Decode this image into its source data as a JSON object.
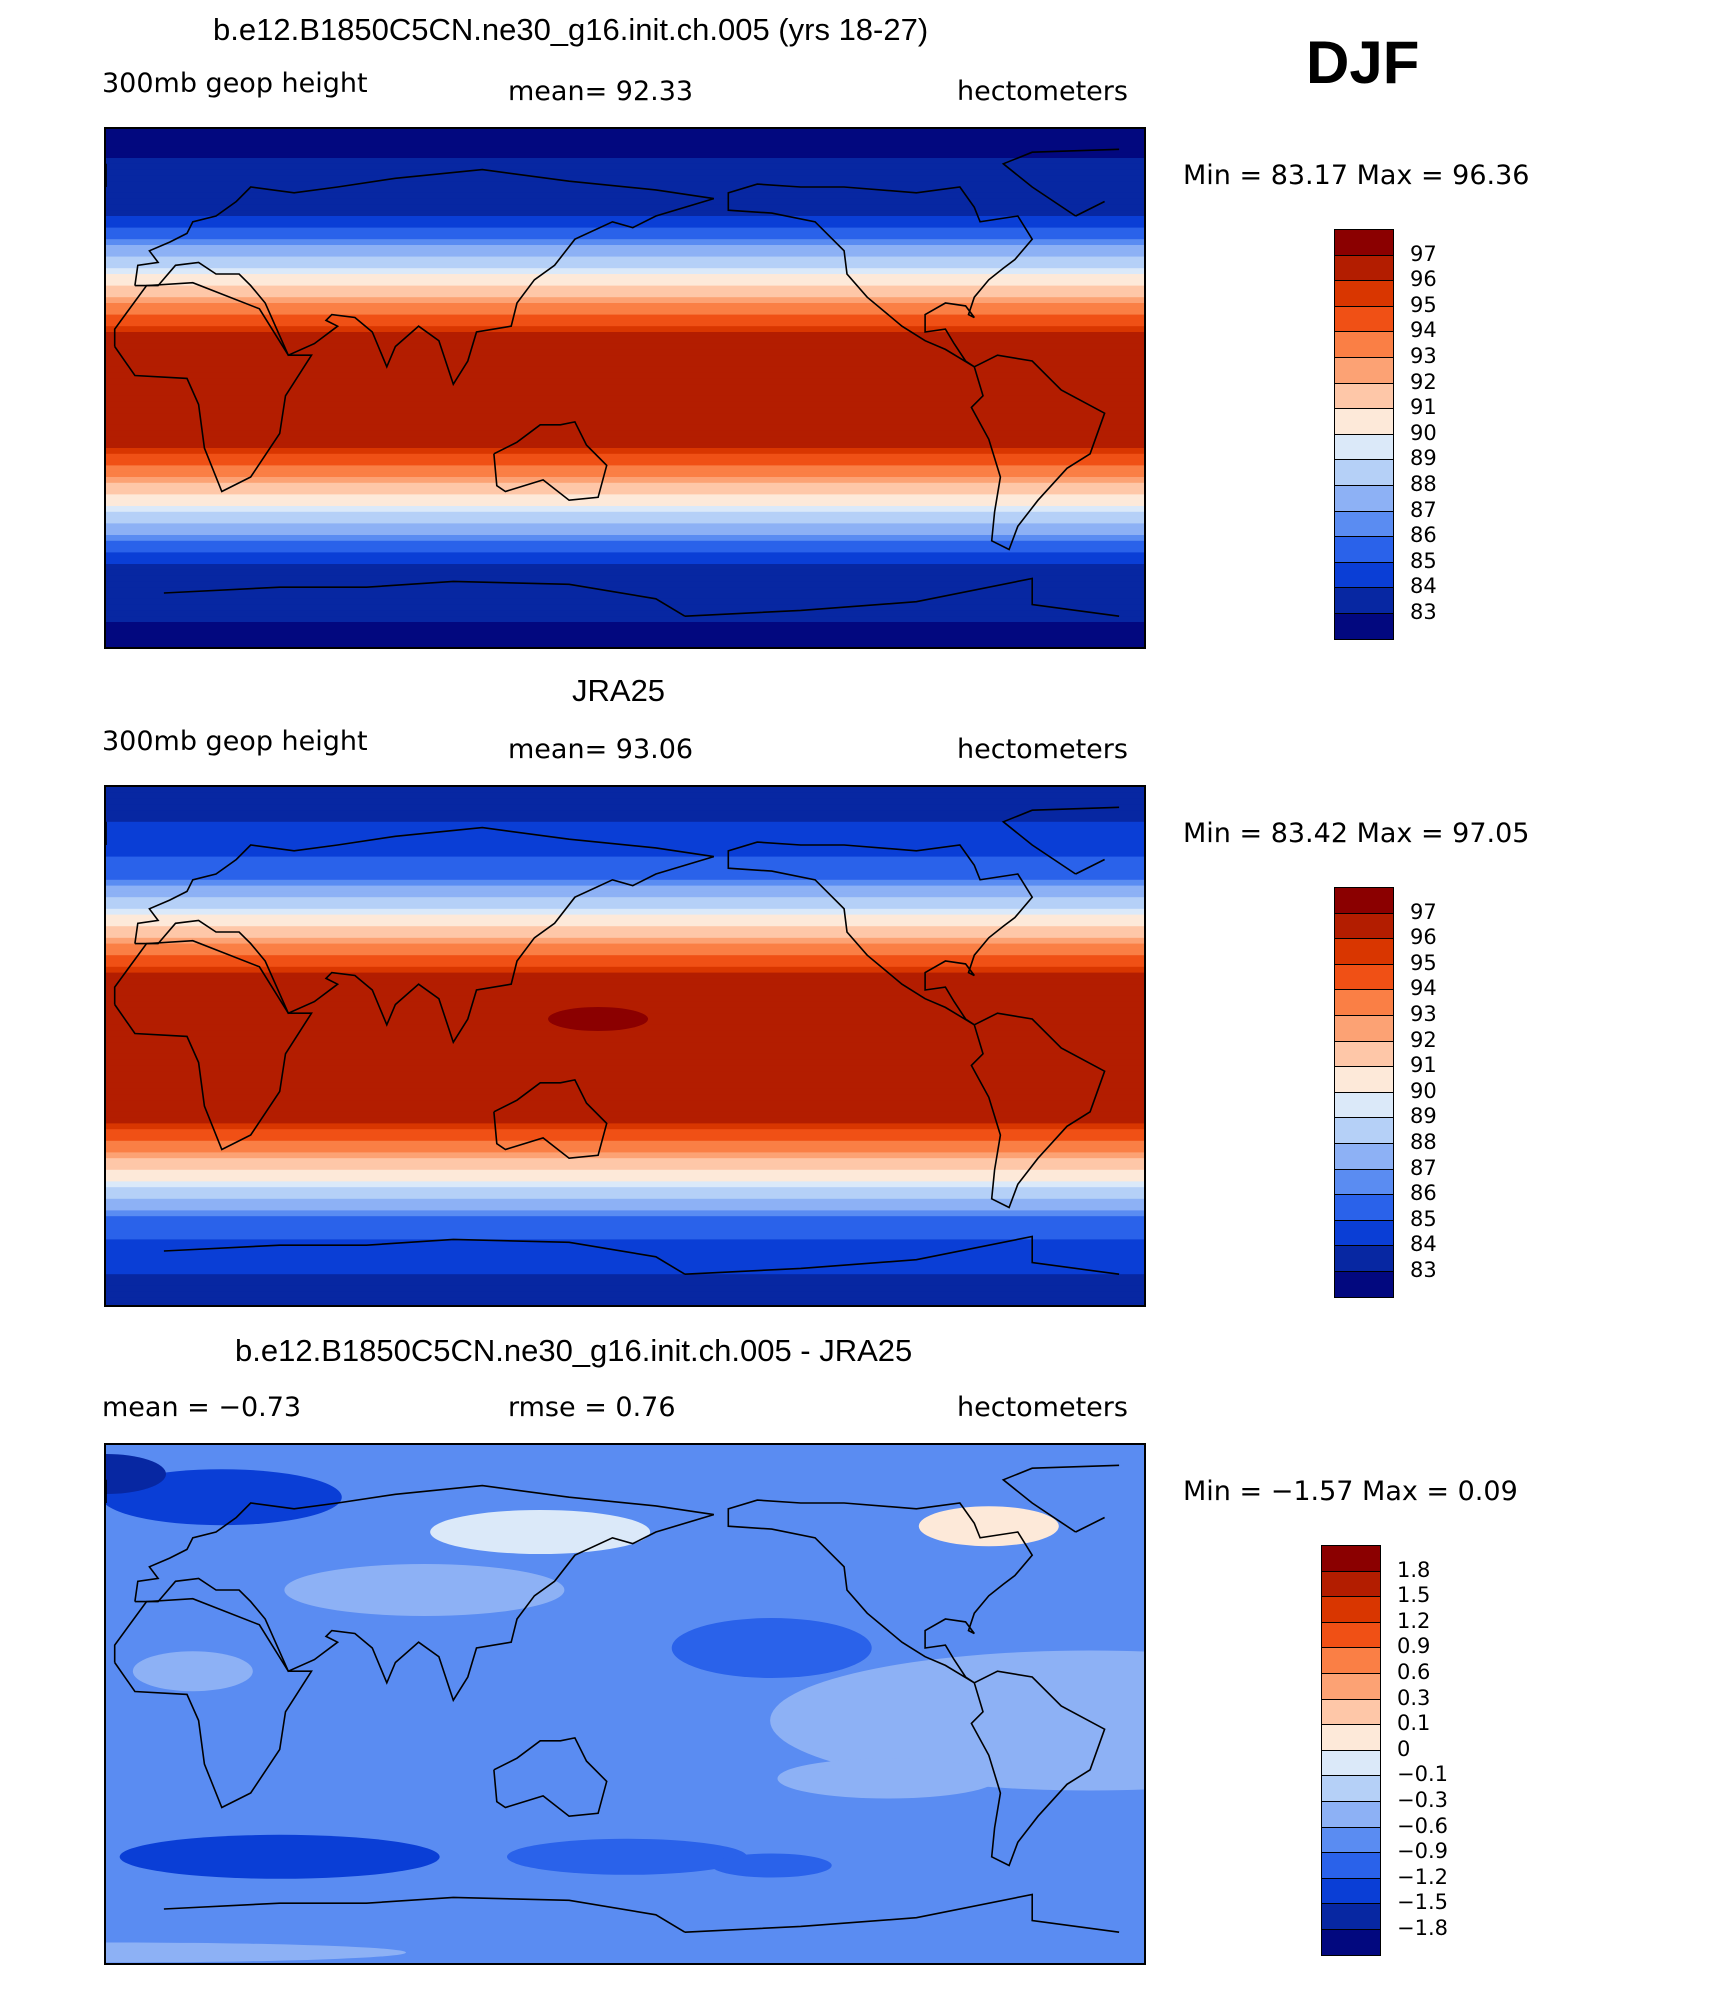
{
  "season": "DJF",
  "panels": [
    {
      "title": "b.e12.B1850C5CN.ne30_g16.init.ch.005 (yrs 18-27)",
      "left_label": "300mb geop height",
      "center_label": "mean=   92.33",
      "right_label": "hectometers",
      "minmax": "Min =   83.17  Max =    96.36",
      "field": "model",
      "colorbar": {
        "labels": [
          "97",
          "96",
          "95",
          "94",
          "93",
          "92",
          "91",
          "90",
          "89",
          "88",
          "87",
          "86",
          "85",
          "84",
          "83"
        ],
        "colors": [
          "#8b0000",
          "#b31d00",
          "#d93600",
          "#f05015",
          "#fa7f45",
          "#fca274",
          "#fec7a8",
          "#fde9d9",
          "#dbe9f9",
          "#b5d0f7",
          "#8db1f5",
          "#5a8cf2",
          "#2a62ea",
          "#0a3ed6",
          "#0727a2",
          "#02087f"
        ]
      }
    },
    {
      "title": "JRA25",
      "left_label": "300mb geop height",
      "center_label": "mean=   93.06",
      "right_label": "hectometers",
      "minmax": "Min =   83.42  Max =    97.05",
      "field": "obs",
      "colorbar": {
        "labels": [
          "97",
          "96",
          "95",
          "94",
          "93",
          "92",
          "91",
          "90",
          "89",
          "88",
          "87",
          "86",
          "85",
          "84",
          "83"
        ],
        "colors": [
          "#8b0000",
          "#b31d00",
          "#d93600",
          "#f05015",
          "#fa7f45",
          "#fca274",
          "#fec7a8",
          "#fde9d9",
          "#dbe9f9",
          "#b5d0f7",
          "#8db1f5",
          "#5a8cf2",
          "#2a62ea",
          "#0a3ed6",
          "#0727a2",
          "#02087f"
        ]
      }
    },
    {
      "title": "b.e12.B1850C5CN.ne30_g16.init.ch.005 - JRA25",
      "left_label": "mean =   −0.73",
      "center_label": "rmse =    0.76",
      "right_label": "hectometers",
      "minmax": "Min =   −1.57  Max =     0.09",
      "field": "diff",
      "colorbar": {
        "labels": [
          "1.8",
          "1.5",
          "1.2",
          "0.9",
          "0.6",
          "0.3",
          "0.1",
          "0",
          "−0.1",
          "−0.3",
          "−0.6",
          "−0.9",
          "−1.2",
          "−1.5",
          "−1.8"
        ],
        "colors": [
          "#8b0000",
          "#b31d00",
          "#d93600",
          "#f05015",
          "#fa7f45",
          "#fca274",
          "#fec7a8",
          "#fde9d9",
          "#dbe9f9",
          "#b5d0f7",
          "#8db1f5",
          "#5a8cf2",
          "#2a62ea",
          "#0a3ed6",
          "#0727a2",
          "#02087f"
        ]
      }
    }
  ]
}
